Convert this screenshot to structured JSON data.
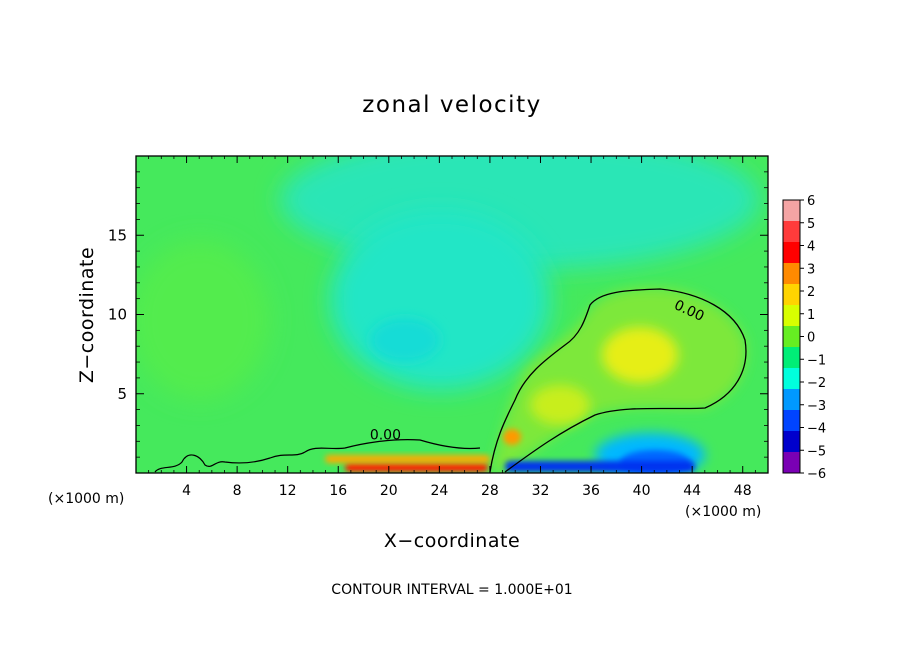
{
  "chart_data": {
    "type": "heatmap",
    "title": "zonal velocity",
    "xlabel": "X−coordinate",
    "ylabel": "Z−coordinate",
    "x_unit": "(×1000 m)",
    "footer": "CONTOUR INTERVAL = 1.000E+01",
    "xlim": [
      0,
      50
    ],
    "ylim": [
      0,
      20
    ],
    "x_ticks": [
      4,
      8,
      12,
      16,
      20,
      24,
      28,
      32,
      36,
      40,
      44,
      48
    ],
    "y_ticks": [
      5,
      10,
      15
    ],
    "x_tick_labels": [
      "4",
      "8",
      "12",
      "16",
      "20",
      "24",
      "28",
      "32",
      "36",
      "40",
      "44",
      "48"
    ],
    "y_tick_labels": [
      "5",
      "10",
      "15"
    ],
    "colorbar": {
      "levels": [
        6,
        5,
        4,
        3,
        2,
        1,
        0,
        -1,
        -2,
        -3,
        -4,
        -5,
        -6
      ],
      "labels": [
        "6",
        "5",
        "4",
        "3",
        "2",
        "1",
        "0",
        "−1",
        "−2",
        "−3",
        "−4",
        "−5",
        "−6"
      ],
      "colors": [
        "#f4a4a4",
        "#ff3b3b",
        "#ff0000",
        "#ff8a00",
        "#ffd400",
        "#d8ff00",
        "#66ee22",
        "#00ee77",
        "#00ffdd",
        "#0099ff",
        "#0044ff",
        "#0000cc",
        "#7a00b4"
      ]
    },
    "contour_labels": [
      {
        "text": "0.00",
        "x": 42.5,
        "y": 10.4
      },
      {
        "text": "0.00",
        "x": 18.5,
        "y": 2.1
      }
    ]
  }
}
